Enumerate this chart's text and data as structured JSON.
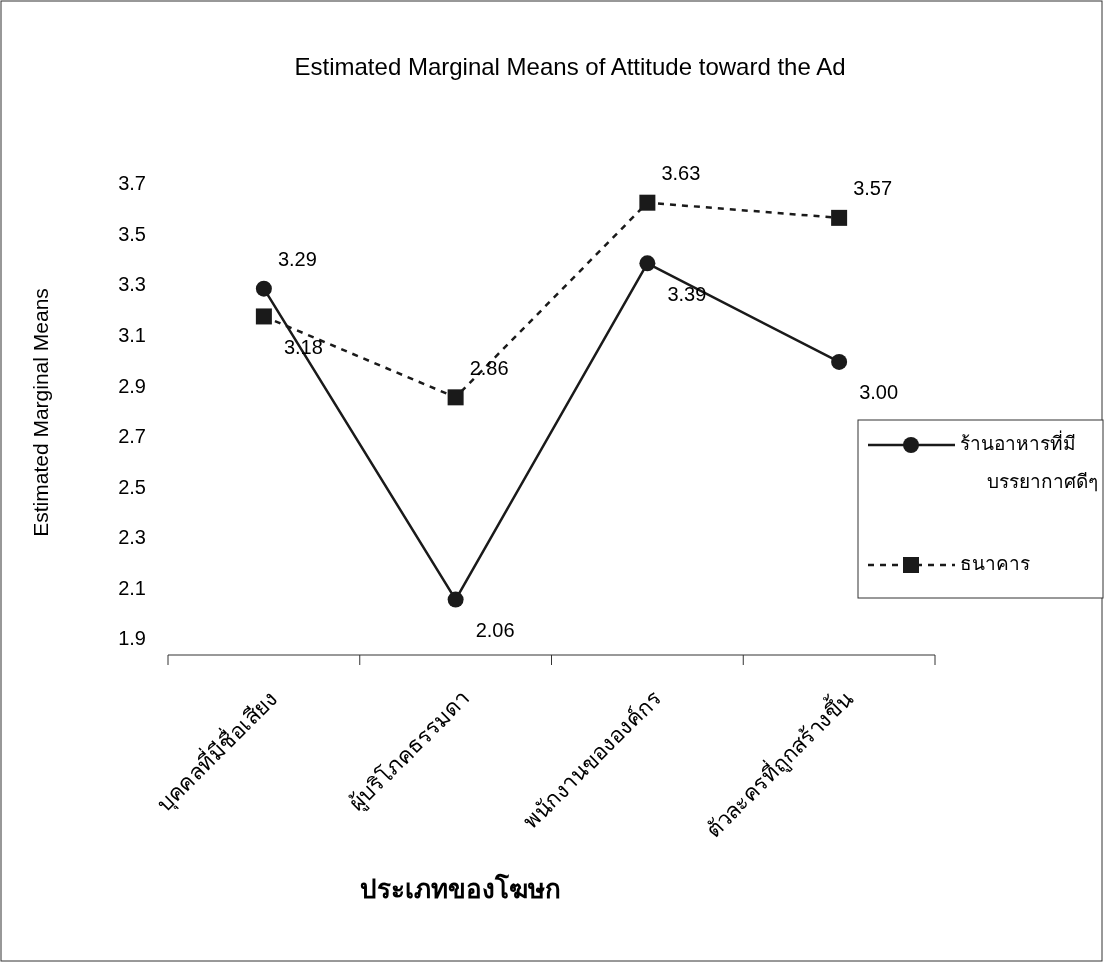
{
  "chart_data": {
    "type": "line",
    "title": "Estimated Marginal Means of Attitude toward the Ad",
    "xlabel": "ประเภทของโฆษก",
    "ylabel": "Estimated Marginal Means",
    "categories": [
      "บุคคลที่มีชื่อเสียง",
      "ผู้บริโภคธรรมดา",
      "พนักงานขององค์กร",
      "ตัวละครที่ถูกสร้างขึ้น"
    ],
    "series": [
      {
        "name": "ร้านอาหารที่มีบรรยากาศดีๆ",
        "color": "#1a1a1a",
        "values": [
          3.29,
          2.06,
          3.39,
          3.0
        ],
        "value_labels": [
          "3.29",
          "2.06",
          "3.39",
          "3.00"
        ],
        "marker": "circle",
        "line_style": "solid"
      },
      {
        "name": "ธนาคาร",
        "color": "#1a1a1a",
        "values": [
          3.18,
          2.86,
          3.63,
          3.57
        ],
        "value_labels": [
          "3.18",
          "2.86",
          "3.63",
          "3.57"
        ],
        "marker": "square",
        "line_style": "dashed"
      }
    ],
    "ylim": [
      1.9,
      3.7
    ],
    "yticks": [
      1.9,
      2.1,
      2.3,
      2.5,
      2.7,
      2.9,
      3.1,
      3.3,
      3.5,
      3.7
    ],
    "legend": "right",
    "grid": false
  }
}
